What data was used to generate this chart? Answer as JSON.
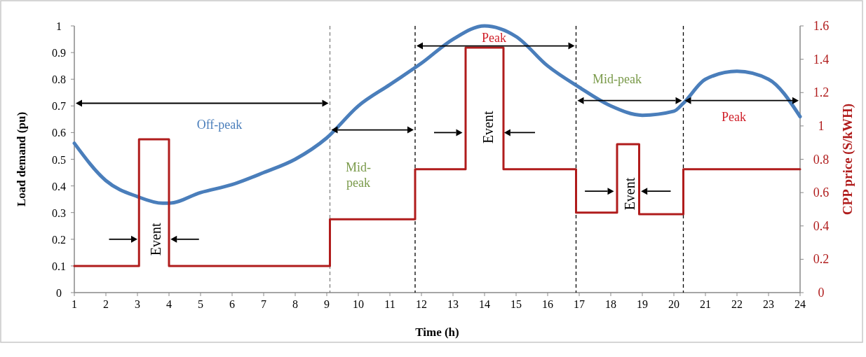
{
  "chart_data": {
    "type": "line",
    "xlabel": "Time (h)",
    "ylabel": "Load demand (pu)",
    "y2label": "CPP price (S/kWH)",
    "xlim": [
      1,
      24
    ],
    "xticks": [
      1,
      2,
      3,
      4,
      5,
      6,
      7,
      8,
      9,
      10,
      11,
      12,
      13,
      14,
      15,
      16,
      17,
      18,
      19,
      20,
      21,
      22,
      23,
      24
    ],
    "ylim": [
      0,
      1
    ],
    "yticks": [
      0,
      0.1,
      0.2,
      0.3,
      0.4,
      0.5,
      0.6,
      0.7,
      0.8,
      0.9,
      1
    ],
    "y2lim": [
      0,
      1.6
    ],
    "y2ticks": [
      0,
      0.2,
      0.4,
      0.6,
      0.8,
      1,
      1.2,
      1.4,
      1.6
    ],
    "series": [
      {
        "color": "#4a7ebb",
        "x": [
          1,
          2,
          3,
          3.8,
          4,
          5,
          6,
          7,
          8,
          9,
          10,
          11,
          12,
          13,
          14,
          15,
          16,
          17,
          18,
          19,
          20,
          20.3,
          21,
          22,
          23,
          24
        ],
        "values": [
          0.56,
          0.42,
          0.36,
          0.335,
          0.335,
          0.375,
          0.405,
          0.45,
          0.5,
          0.58,
          0.7,
          0.78,
          0.86,
          0.95,
          1.0,
          0.96,
          0.85,
          0.77,
          0.7,
          0.665,
          0.68,
          0.71,
          0.8,
          0.83,
          0.8,
          0.66
        ]
      },
      {
        "axis": "y2",
        "color": "#b01c1c",
        "x": [
          1,
          3.05,
          3.05,
          4,
          4,
          9.1,
          9.1,
          11.8,
          11.8,
          13.4,
          13.4,
          14.6,
          14.6,
          16.9,
          16.9,
          18.2,
          18.2,
          18.9,
          18.9,
          20.3,
          20.3,
          24
        ],
        "values": [
          0.16,
          0.16,
          0.92,
          0.92,
          0.16,
          0.16,
          0.44,
          0.44,
          0.74,
          0.74,
          1.47,
          1.47,
          0.74,
          0.74,
          0.48,
          0.48,
          0.89,
          0.89,
          0.47,
          0.47,
          0.74,
          0.74
        ]
      }
    ],
    "ref_lines": [
      {
        "axis": "x",
        "value": 9.1,
        "color": "#808080",
        "line_style": "dashed"
      },
      {
        "axis": "x",
        "value": 11.8,
        "color": "#000000",
        "line_style": "dashed"
      },
      {
        "axis": "x",
        "value": 16.9,
        "color": "#000000",
        "line_style": "dashed"
      },
      {
        "axis": "x",
        "value": 20.3,
        "color": "#000000",
        "line_style": "dashed"
      }
    ],
    "annotations": [
      "Off-peak",
      "Mid-\npeak",
      "Peak",
      "Mid-peak",
      "Peak",
      "Event",
      "Event",
      "Event"
    ],
    "grid": false
  }
}
